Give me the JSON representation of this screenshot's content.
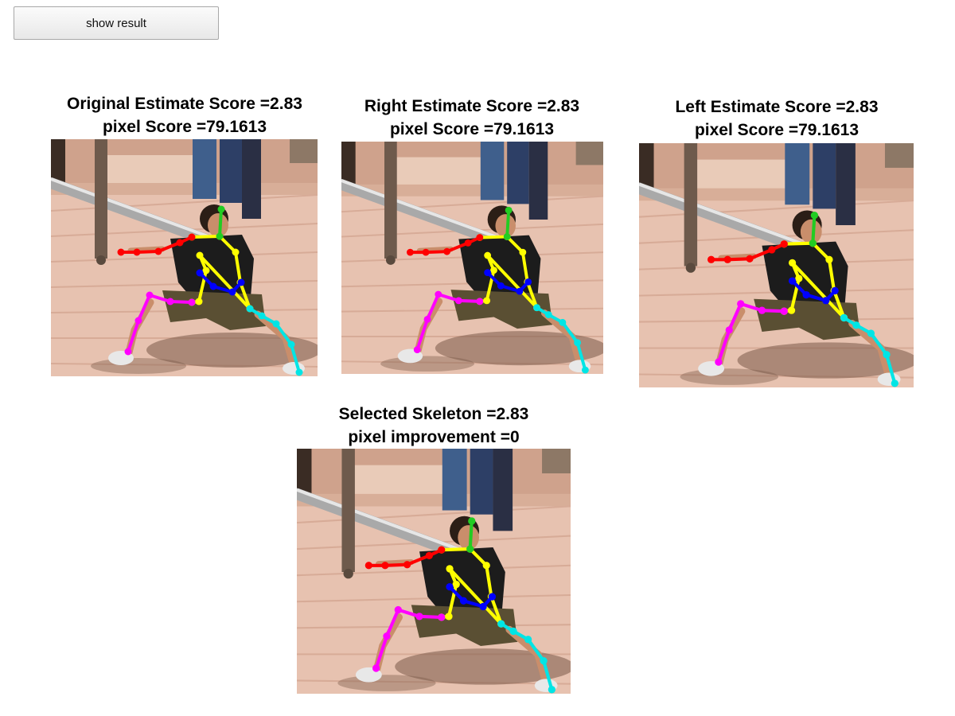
{
  "toolbar": {
    "show_result_label": "show result"
  },
  "panels": [
    {
      "key": "original",
      "title_line1": "Original Estimate Score =2.83",
      "title_line2": "pixel Score =79.1613"
    },
    {
      "key": "right",
      "title_line1": "Right Estimate Score =2.83",
      "title_line2": "pixel Score =79.1613"
    },
    {
      "key": "left",
      "title_line1": "Left Estimate Score =2.83",
      "title_line2": "pixel Score =79.1613"
    },
    {
      "key": "selected",
      "title_line1": "Selected Skeleton =2.83",
      "title_line2": "pixel improvement =0"
    }
  ],
  "skeleton_colors": {
    "head": "#22cc22",
    "torso": "#ffff00",
    "left_arm": "#ff0000",
    "right_arm": "#0000ff",
    "left_leg": "#ff00ff",
    "right_leg": "#00e5e5"
  }
}
